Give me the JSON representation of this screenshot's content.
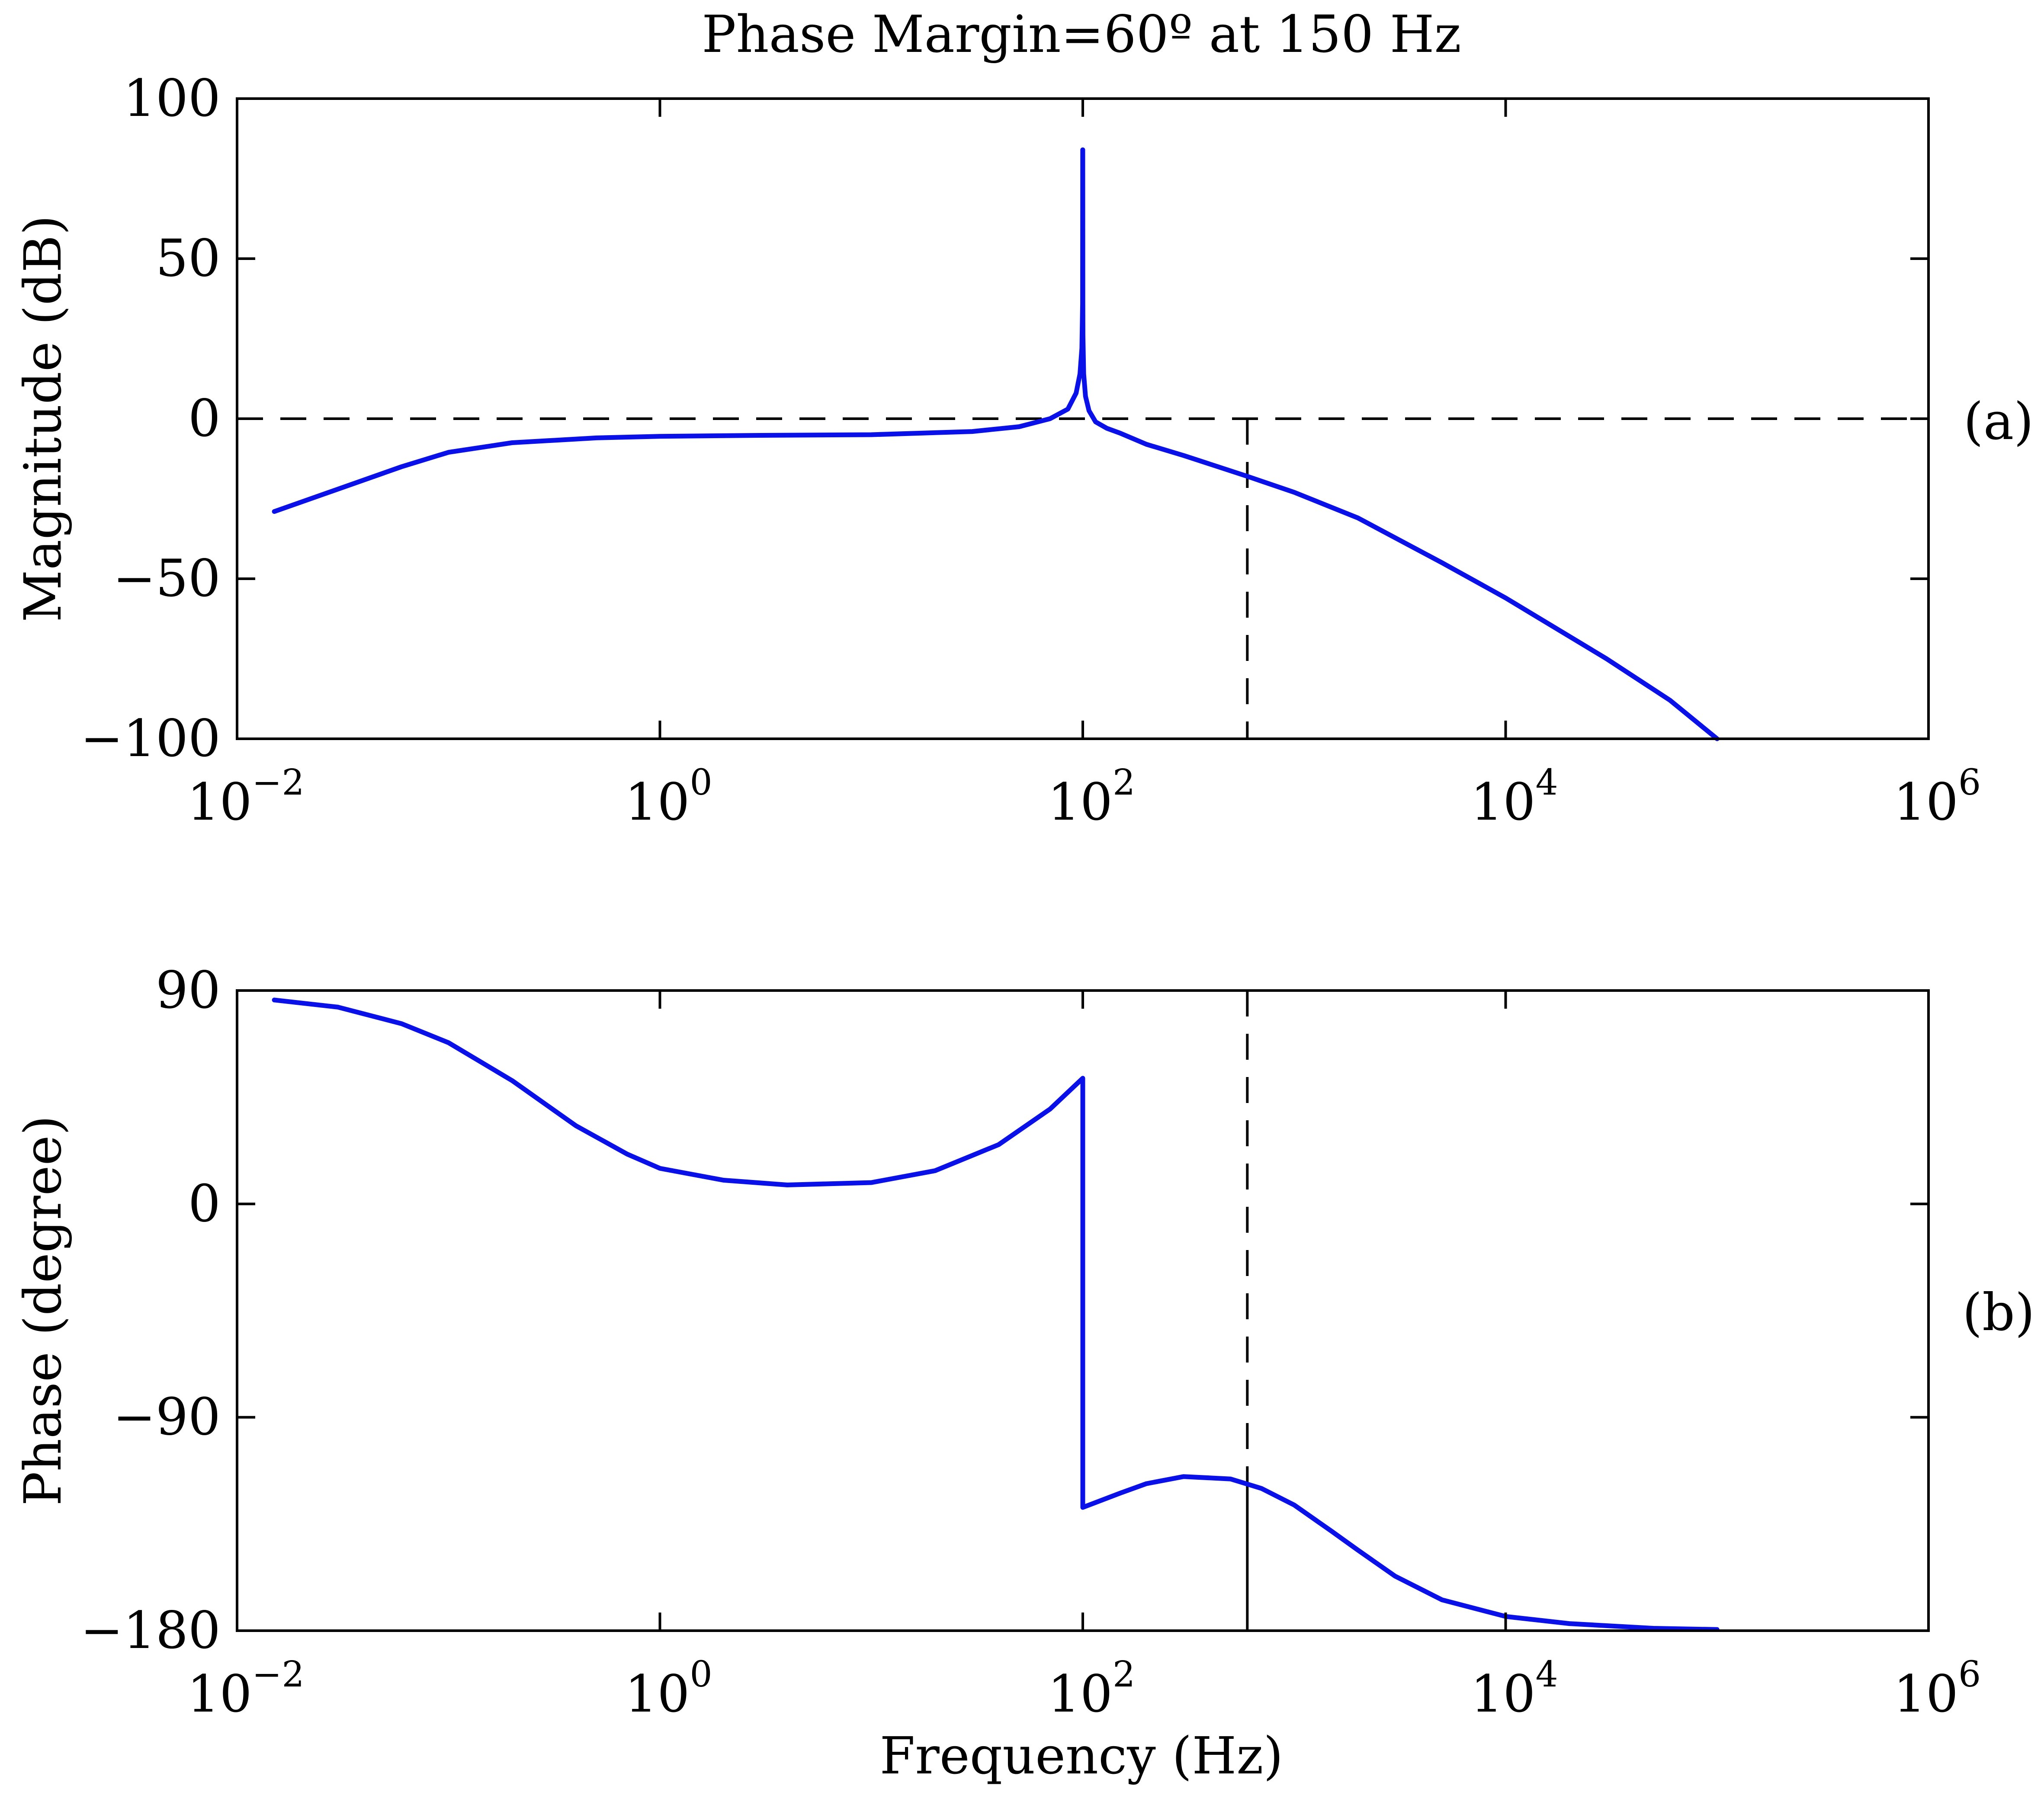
{
  "chart_data": [
    {
      "id": "magnitude",
      "type": "line",
      "title": "Phase Margin=60º at 150 Hz",
      "panel_label": "(a)",
      "xlabel": "",
      "ylabel": "Magnitude (dB)",
      "xscale": "log",
      "xlim": [
        0.01,
        1000000
      ],
      "ylim": [
        -100,
        100
      ],
      "yticks": [
        -100,
        -50,
        0,
        50,
        100
      ],
      "ytick_labels": [
        "−100",
        "−50",
        "0",
        "50",
        "100"
      ],
      "xticks": [
        0.01,
        1,
        100,
        10000,
        1000000
      ],
      "xtick_labels": [
        {
          "base": "10",
          "exp": "−2"
        },
        {
          "base": "10",
          "exp": "0"
        },
        {
          "base": "10",
          "exp": "2"
        },
        {
          "base": "10",
          "exp": "4"
        },
        {
          "base": "10",
          "exp": "6"
        }
      ],
      "grid": false,
      "reference_lines": [
        {
          "orientation": "horizontal",
          "value": 0,
          "style": "dashed"
        },
        {
          "orientation": "vertical",
          "value": 600,
          "style": "dashed",
          "y_range": [
            -100,
            0
          ]
        }
      ],
      "series": [
        {
          "name": "magnitude",
          "color": "#0a10e8",
          "x": [
            0.015,
            0.03,
            0.06,
            0.1,
            0.2,
            0.5,
            1,
            3,
            10,
            30,
            50,
            70,
            85,
            93,
            97,
            99,
            99.8,
            99.9,
            100,
            100.1,
            100.2,
            101,
            103,
            107,
            115,
            130,
            150,
            200,
            300,
            600,
            1000,
            2000,
            5000,
            10000,
            30000,
            60000,
            100000
          ],
          "y": [
            -29,
            -22,
            -15,
            -10.5,
            -7.5,
            -6,
            -5.5,
            -5.2,
            -5,
            -4,
            -2.5,
            0,
            3,
            8,
            14,
            22,
            36,
            84,
            84,
            36,
            26,
            14,
            7,
            2.5,
            -1,
            -3,
            -4.5,
            -8,
            -11.5,
            -18,
            -23,
            -31,
            -45,
            -56,
            -75,
            -88,
            -100
          ]
        }
      ]
    },
    {
      "id": "phase",
      "type": "line",
      "title": "",
      "panel_label": "(b)",
      "xlabel": "Frequency (Hz)",
      "ylabel": "Phase (degree)",
      "xscale": "log",
      "xlim": [
        0.01,
        1000000
      ],
      "ylim": [
        -180,
        90
      ],
      "yticks": [
        -180,
        -90,
        0,
        90
      ],
      "ytick_labels": [
        "−180",
        "−90",
        "0",
        "90"
      ],
      "xticks": [
        0.01,
        1,
        100,
        10000,
        1000000
      ],
      "xtick_labels": [
        {
          "base": "10",
          "exp": "−2"
        },
        {
          "base": "10",
          "exp": "0"
        },
        {
          "base": "10",
          "exp": "2"
        },
        {
          "base": "10",
          "exp": "4"
        },
        {
          "base": "10",
          "exp": "6"
        }
      ],
      "grid": false,
      "reference_lines": [
        {
          "orientation": "vertical",
          "value": 600,
          "style": "dashed",
          "y_range": [
            -120,
            90
          ]
        },
        {
          "orientation": "vertical",
          "value": 600,
          "style": "solid",
          "y_range": [
            -180,
            -120
          ]
        }
      ],
      "series": [
        {
          "name": "phase",
          "color": "#0a10e8",
          "x": [
            0.015,
            0.03,
            0.06,
            0.1,
            0.2,
            0.4,
            0.7,
            1,
            2,
            4,
            10,
            20,
            40,
            70,
            100,
            100.001,
            150,
            200,
            300,
            500,
            700,
            1000,
            1500,
            2000,
            3000,
            5000,
            10000,
            20000,
            50000,
            100000
          ],
          "y": [
            86,
            83,
            76,
            68,
            52,
            33,
            21,
            15,
            10,
            8,
            9,
            14,
            25,
            40,
            53,
            -128,
            -122,
            -118,
            -115,
            -116,
            -120,
            -127,
            -138,
            -146,
            -157,
            -167,
            -174,
            -177,
            -179,
            -179.5
          ]
        }
      ]
    }
  ]
}
